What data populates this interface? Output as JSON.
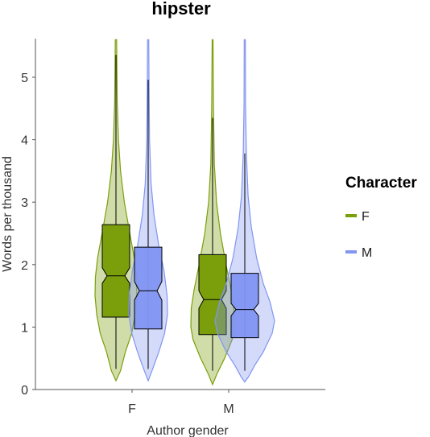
{
  "chart_data": {
    "type": "violin",
    "title": "hipster",
    "xlabel": "Author gender",
    "ylabel": "Words per thousand",
    "categories": [
      "F",
      "M"
    ],
    "yticks": [
      "0",
      "1",
      "2",
      "3",
      "4",
      "5"
    ],
    "ylim": [
      0,
      5.6
    ],
    "legend": {
      "title": "Character",
      "position": "right",
      "entries": [
        {
          "label": "F",
          "color": "#7a9f0a"
        },
        {
          "label": "M",
          "color": "#8195f2"
        }
      ]
    },
    "series": [
      {
        "name": "F",
        "color": "#7a9f0a",
        "groups": [
          {
            "category": "F",
            "min": 0.33,
            "q1": 1.16,
            "median": 1.82,
            "q3": 2.64,
            "max": 5.36,
            "notch_low": 1.7,
            "notch_high": 1.95,
            "violin_bottom": 0.14,
            "violin_top": 5.6
          },
          {
            "category": "M",
            "min": 0.3,
            "q1": 0.88,
            "median": 1.44,
            "q3": 2.16,
            "max": 4.35,
            "notch_low": 1.3,
            "notch_high": 1.58,
            "violin_bottom": 0.08,
            "violin_top": 5.6
          }
        ]
      },
      {
        "name": "M",
        "color": "#8195f2",
        "groups": [
          {
            "category": "F",
            "min": 0.33,
            "q1": 0.97,
            "median": 1.58,
            "q3": 2.28,
            "max": 4.96,
            "notch_low": 1.43,
            "notch_high": 1.73,
            "violin_bottom": 0.14,
            "violin_top": 5.6
          },
          {
            "category": "M",
            "min": 0.3,
            "q1": 0.83,
            "median": 1.28,
            "q3": 1.86,
            "max": 3.78,
            "notch_low": 1.18,
            "notch_high": 1.38,
            "violin_bottom": 0.12,
            "violin_top": 5.6
          }
        ]
      }
    ]
  }
}
